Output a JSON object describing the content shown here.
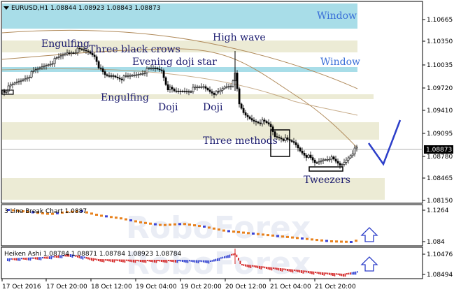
{
  "main": {
    "header": "EURUSD,H1  1.08844 1.08923 1.08843 1.08873",
    "price_ticks": [
      "1.10665",
      "1.10350",
      "1.10035",
      "1.09720",
      "1.09410",
      "1.09095",
      "1.08780",
      "1.08465",
      "1.08150"
    ],
    "current_price": "1.08873",
    "windows": [
      "Window",
      "Window"
    ],
    "patterns": [
      "Engulfing",
      "Three black crows",
      "Evening doji star",
      "High wave",
      "Engulfing",
      "Doji",
      "Doji",
      "Three methods",
      "Tweezers"
    ]
  },
  "indicator1": {
    "label": "3 Line Break Chart 1.0887",
    "ticks": [
      "1.1264",
      "1.084"
    ]
  },
  "indicator2": {
    "label": "Heiken Ashi 1.08784 1.08871 1.08784 1.08923 1.08784",
    "ticks": [
      "1.10476",
      "1.08494"
    ]
  },
  "time_axis": [
    "17 Oct 2016",
    "17 Oct 20:00",
    "18 Oct 12:00",
    "19 Oct 04:00",
    "19 Oct 20:00",
    "20 Oct 12:00",
    "21 Oct 04:00",
    "21 Oct 20:00"
  ],
  "watermark": "RoboForex",
  "colors": {
    "band_beige": "#ecebd5",
    "band_cyan": "#a8dde8",
    "candle_bull": "#ffffff",
    "candle_bear": "#000000",
    "ma": "#b08a5a",
    "arrow": "#2d3fc9",
    "lb_bull": "#3a43d6",
    "lb_bear": "#e8821e",
    "ha_bull": "#2f3fd0",
    "ha_bear": "#d42424"
  }
}
